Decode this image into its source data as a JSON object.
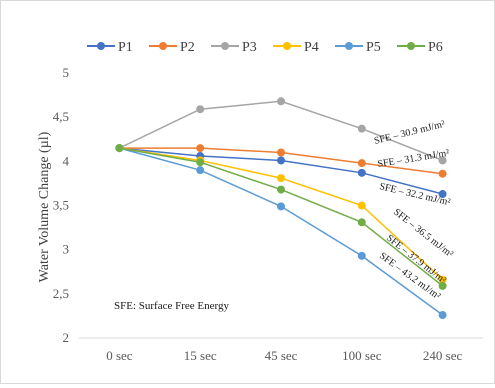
{
  "chart_data": {
    "type": "line",
    "categories": [
      "0 sec",
      "15 sec",
      "45 sec",
      "100 sec",
      "240 sec"
    ],
    "ylabel": "Water Volume Change (µl)",
    "xlabel": "",
    "ylim": [
      2,
      5
    ],
    "yticks": [
      2,
      2.5,
      3,
      3.5,
      4,
      4.5,
      5
    ],
    "ytick_labels": [
      "2",
      "2,5",
      "3",
      "3,5",
      "4",
      "4,5",
      "5"
    ],
    "grid": false,
    "legend_position": "top",
    "series": [
      {
        "name": "P1",
        "color": "#4472c4",
        "values": [
          4.15,
          4.06,
          4.01,
          3.87,
          3.63
        ]
      },
      {
        "name": "P2",
        "color": "#ed7d31",
        "values": [
          4.15,
          4.15,
          4.1,
          3.98,
          3.86
        ]
      },
      {
        "name": "P3",
        "color": "#a5a5a5",
        "values": [
          4.15,
          4.59,
          4.68,
          4.37,
          4.01
        ]
      },
      {
        "name": "P4",
        "color": "#ffc000",
        "values": [
          4.15,
          4.01,
          3.81,
          3.5,
          2.66
        ]
      },
      {
        "name": "P5",
        "color": "#5b9bd5",
        "values": [
          4.15,
          3.9,
          3.49,
          2.93,
          2.26
        ]
      },
      {
        "name": "P6",
        "color": "#70ad47",
        "values": [
          4.15,
          3.99,
          3.68,
          3.31,
          2.59
        ]
      }
    ],
    "annotations": [
      "SFE – 30.9 mJ/m²",
      "SFE – 31.3 mJ/m²",
      "SFE – 32.2 mJ/m²",
      "SFE – 36.5 mJ/m²",
      "SFE – 37.9 mJ/m²",
      "SFE – 43.2 mJ/m²"
    ],
    "note": "SFE: Surface Free Energy"
  }
}
